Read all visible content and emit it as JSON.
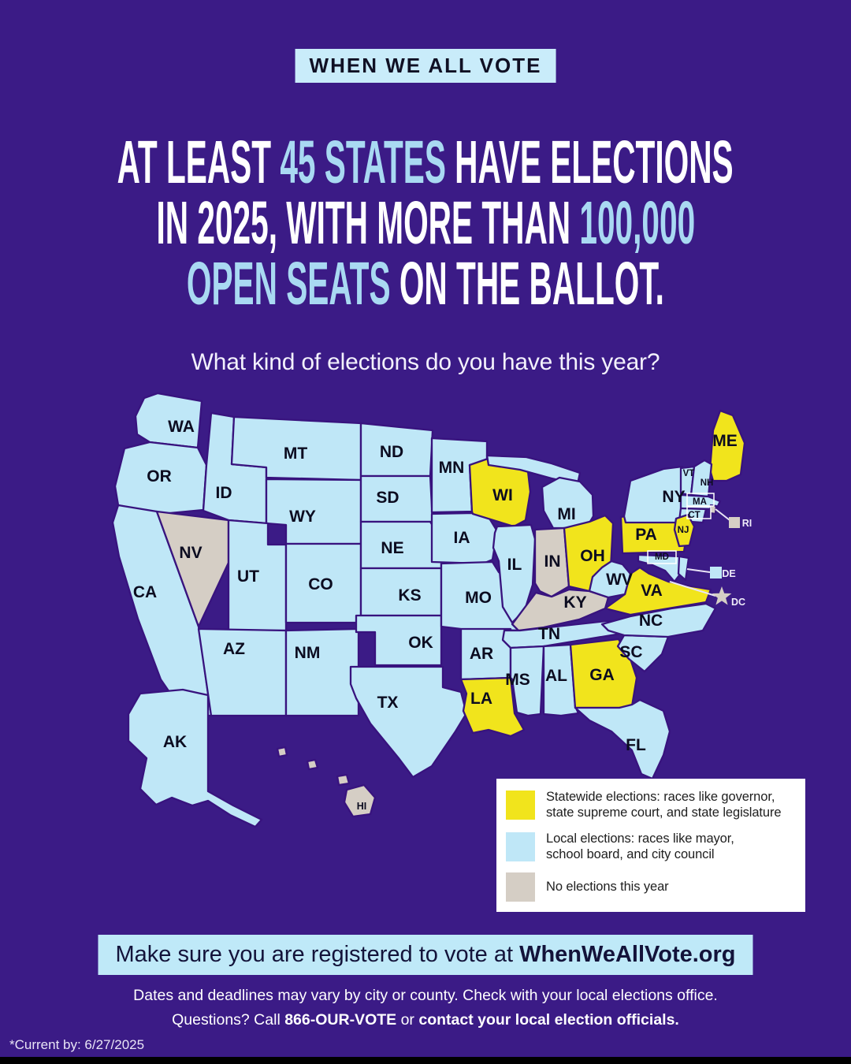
{
  "badge": {
    "label": "WHEN WE ALL VOTE"
  },
  "headline": {
    "accent_color": "#a9d9f2",
    "lines": [
      {
        "segments": [
          {
            "text": "AT LEAST ",
            "accent": false
          },
          {
            "text": "45 STATES",
            "accent": true
          },
          {
            "text": " HAVE ELECTIONS",
            "accent": false
          }
        ]
      },
      {
        "segments": [
          {
            "text": "IN 2025, WITH MORE THAN ",
            "accent": false
          },
          {
            "text": "100,000",
            "accent": true
          }
        ]
      },
      {
        "segments": [
          {
            "text": "OPEN SEATS",
            "accent": true
          },
          {
            "text": " ON THE BALLOT.",
            "accent": false
          }
        ]
      }
    ]
  },
  "subtitle": "What kind of elections do you have this year?",
  "map": {
    "categories": {
      "statewide": {
        "color": "#f1e41c"
      },
      "local": {
        "color": "#bfe7f7"
      },
      "none": {
        "color": "#d5cec5"
      }
    },
    "states": [
      {
        "id": "WA",
        "label": "WA",
        "category": "local"
      },
      {
        "id": "OR",
        "label": "OR",
        "category": "local"
      },
      {
        "id": "CA",
        "label": "CA",
        "category": "local"
      },
      {
        "id": "NV",
        "label": "NV",
        "category": "none"
      },
      {
        "id": "ID",
        "label": "ID",
        "category": "local"
      },
      {
        "id": "MT",
        "label": "MT",
        "category": "local"
      },
      {
        "id": "WY",
        "label": "WY",
        "category": "local"
      },
      {
        "id": "UT",
        "label": "UT",
        "category": "local"
      },
      {
        "id": "AZ",
        "label": "AZ",
        "category": "local"
      },
      {
        "id": "CO",
        "label": "CO",
        "category": "local"
      },
      {
        "id": "NM",
        "label": "NM",
        "category": "local"
      },
      {
        "id": "ND",
        "label": "ND",
        "category": "local"
      },
      {
        "id": "SD",
        "label": "SD",
        "category": "local"
      },
      {
        "id": "NE",
        "label": "NE",
        "category": "local"
      },
      {
        "id": "KS",
        "label": "KS",
        "category": "local"
      },
      {
        "id": "OK",
        "label": "OK",
        "category": "local"
      },
      {
        "id": "TX",
        "label": "TX",
        "category": "local"
      },
      {
        "id": "MN",
        "label": "MN",
        "category": "local"
      },
      {
        "id": "IA",
        "label": "IA",
        "category": "local"
      },
      {
        "id": "MO",
        "label": "MO",
        "category": "local"
      },
      {
        "id": "AR",
        "label": "AR",
        "category": "local"
      },
      {
        "id": "LA",
        "label": "LA",
        "category": "statewide"
      },
      {
        "id": "WI",
        "label": "WI",
        "category": "statewide"
      },
      {
        "id": "IL",
        "label": "IL",
        "category": "local"
      },
      {
        "id": "MI",
        "label": "MI",
        "category": "local"
      },
      {
        "id": "IN",
        "label": "IN",
        "category": "none"
      },
      {
        "id": "OH",
        "label": "OH",
        "category": "statewide"
      },
      {
        "id": "KY",
        "label": "KY",
        "category": "none"
      },
      {
        "id": "TN",
        "label": "TN",
        "category": "local"
      },
      {
        "id": "MS",
        "label": "MS",
        "category": "local"
      },
      {
        "id": "AL",
        "label": "AL",
        "category": "local"
      },
      {
        "id": "GA",
        "label": "GA",
        "category": "statewide"
      },
      {
        "id": "FL",
        "label": "FL",
        "category": "local"
      },
      {
        "id": "SC",
        "label": "SC",
        "category": "local"
      },
      {
        "id": "NC",
        "label": "NC",
        "category": "local"
      },
      {
        "id": "VA",
        "label": "VA",
        "category": "statewide"
      },
      {
        "id": "WV",
        "label": "WV",
        "category": "local"
      },
      {
        "id": "PA",
        "label": "PA",
        "category": "statewide"
      },
      {
        "id": "NY",
        "label": "NY",
        "category": "local"
      },
      {
        "id": "ME",
        "label": "ME",
        "category": "statewide"
      },
      {
        "id": "VT",
        "label": "VT",
        "category": "local"
      },
      {
        "id": "NH",
        "label": "NH",
        "category": "local"
      },
      {
        "id": "MA",
        "label": "MA",
        "category": "local"
      },
      {
        "id": "CT",
        "label": "CT",
        "category": "local"
      },
      {
        "id": "RI",
        "label": "RI",
        "category": "none"
      },
      {
        "id": "NJ",
        "label": "NJ",
        "category": "statewide"
      },
      {
        "id": "MD",
        "label": "MD",
        "category": "local"
      },
      {
        "id": "DE",
        "label": "DE",
        "category": "local"
      },
      {
        "id": "AK",
        "label": "AK",
        "category": "local"
      },
      {
        "id": "HI",
        "label": "HI",
        "category": "none"
      }
    ],
    "callouts": [
      {
        "id": "RI",
        "label": "RI",
        "category": "none"
      },
      {
        "id": "DE",
        "label": "DE",
        "category": "local"
      },
      {
        "id": "DC",
        "label": "DC",
        "category": "none"
      }
    ]
  },
  "legend": {
    "items": [
      {
        "category": "statewide",
        "text": "Statewide elections: races like governor,\nstate supreme court, and state legislature"
      },
      {
        "category": "local",
        "text": "Local elections: races like mayor,\nschool board, and city council"
      },
      {
        "category": "none",
        "text": "No elections this year"
      }
    ]
  },
  "banner": {
    "text": "Make sure you are registered to vote at ",
    "bold": "WhenWeAllVote.org"
  },
  "footer": {
    "line1": "Dates and deadlines may vary by city or county. Check with your local elections office.",
    "line2_segments": [
      {
        "text": "Questions? Call ",
        "bold": false
      },
      {
        "text": "866-OUR-VOTE",
        "bold": true
      },
      {
        "text": " or ",
        "bold": false
      },
      {
        "text": "contact your local election officials.",
        "bold": true
      }
    ]
  },
  "note": "*Current by: 6/27/2025",
  "colors": {
    "background": "#3b1b86",
    "accent_text": "#a9d9f2",
    "badge_bg": "#c9ecfa",
    "banner_bg": "#bfe9f8"
  }
}
